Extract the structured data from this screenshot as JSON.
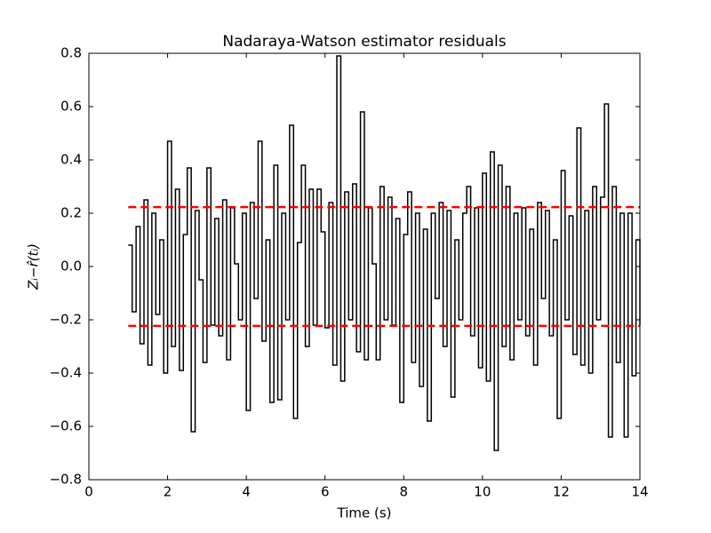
{
  "chart_data": {
    "type": "line",
    "step": true,
    "title": "Nadaraya-Watson estimator residuals",
    "xlabel": "Time (s)",
    "ylabel": "Zᵢ−r̂(tᵢ)",
    "xlim": [
      0,
      14
    ],
    "xticks": [
      0,
      2,
      4,
      6,
      8,
      10,
      12,
      14
    ],
    "ylim": [
      -0.8,
      0.8
    ],
    "yticks": [
      {
        "value": -0.8,
        "label": "−0.8"
      },
      {
        "value": -0.6,
        "label": "−0.6"
      },
      {
        "value": -0.4,
        "label": "−0.4"
      },
      {
        "value": -0.2,
        "label": "−0.2"
      },
      {
        "value": 0,
        "label": "0.0"
      },
      0.2,
      0.4,
      0.6,
      0.8
    ],
    "x": [
      1.0,
      1.1,
      1.2,
      1.3,
      1.4,
      1.5,
      1.6,
      1.7,
      1.8,
      1.9,
      2.0,
      2.1,
      2.2,
      2.3,
      2.4,
      2.5,
      2.6,
      2.7,
      2.8,
      2.9,
      3.0,
      3.1,
      3.2,
      3.3,
      3.4,
      3.5,
      3.6,
      3.7,
      3.8,
      3.9,
      4.0,
      4.1,
      4.2,
      4.3,
      4.4,
      4.5,
      4.6,
      4.7,
      4.8,
      4.9,
      5.0,
      5.1,
      5.2,
      5.3,
      5.4,
      5.5,
      5.6,
      5.7,
      5.8,
      5.9,
      6.0,
      6.1,
      6.2,
      6.3,
      6.4,
      6.5,
      6.6,
      6.7,
      6.8,
      6.9,
      7.0,
      7.1,
      7.2,
      7.3,
      7.4,
      7.5,
      7.6,
      7.7,
      7.8,
      7.9,
      8.0,
      8.1,
      8.2,
      8.3,
      8.4,
      8.5,
      8.6,
      8.7,
      8.8,
      8.9,
      9.0,
      9.1,
      9.2,
      9.3,
      9.4,
      9.5,
      9.6,
      9.7,
      9.8,
      9.9,
      10.0,
      10.1,
      10.2,
      10.3,
      10.4,
      10.5,
      10.6,
      10.7,
      10.8,
      10.9,
      11.0,
      11.1,
      11.2,
      11.3,
      11.4,
      11.5,
      11.6,
      11.7,
      11.8,
      11.9,
      12.0,
      12.1,
      12.2,
      12.3,
      12.4,
      12.5,
      12.6,
      12.7,
      12.8,
      12.9,
      13.0,
      13.1,
      13.2,
      13.3,
      13.4,
      13.5,
      13.6,
      13.7,
      13.8,
      13.9,
      14.0
    ],
    "series": [
      {
        "color": "#000000",
        "values": [
          0.08,
          -0.17,
          0.15,
          -0.29,
          0.25,
          -0.37,
          0.2,
          -0.18,
          0.1,
          -0.4,
          0.47,
          -0.3,
          0.29,
          -0.39,
          0.12,
          0.37,
          -0.62,
          0.21,
          -0.05,
          -0.36,
          0.37,
          -0.22,
          0.18,
          -0.26,
          0.25,
          -0.35,
          0.22,
          0.01,
          -0.2,
          0.2,
          -0.54,
          0.24,
          -0.12,
          0.47,
          -0.28,
          0.1,
          -0.51,
          0.38,
          -0.5,
          0.2,
          -0.2,
          0.53,
          -0.57,
          0.09,
          0.38,
          -0.3,
          0.29,
          -0.22,
          0.29,
          0.13,
          -0.23,
          0.24,
          -0.37,
          0.79,
          -0.43,
          0.28,
          -0.2,
          0.31,
          -0.32,
          0.58,
          -0.35,
          0.22,
          0.01,
          -0.35,
          0.3,
          -0.2,
          0.26,
          -0.22,
          0.18,
          -0.51,
          0.12,
          0.28,
          -0.36,
          0.2,
          -0.45,
          0.14,
          -0.58,
          0.2,
          -0.12,
          0.24,
          -0.3,
          0.21,
          -0.49,
          0.1,
          -0.2,
          0.2,
          0.3,
          -0.26,
          0.22,
          -0.38,
          0.35,
          -0.43,
          0.43,
          -0.69,
          0.38,
          -0.3,
          0.3,
          -0.35,
          0.2,
          -0.2,
          0.22,
          -0.26,
          0.14,
          -0.37,
          0.24,
          -0.12,
          0.21,
          -0.26,
          0.1,
          -0.57,
          0.36,
          -0.2,
          0.19,
          -0.33,
          0.52,
          -0.37,
          0.21,
          -0.4,
          0.3,
          -0.2,
          0.26,
          0.61,
          -0.64,
          0.3,
          -0.36,
          0.2,
          -0.64,
          0.2,
          -0.41,
          0.1,
          -0.22
        ]
      }
    ],
    "hlines": [
      {
        "value": 0.223,
        "color": "#ff0000",
        "dashed": true
      },
      {
        "value": -0.223,
        "color": "#ff0000",
        "dashed": true
      }
    ]
  }
}
